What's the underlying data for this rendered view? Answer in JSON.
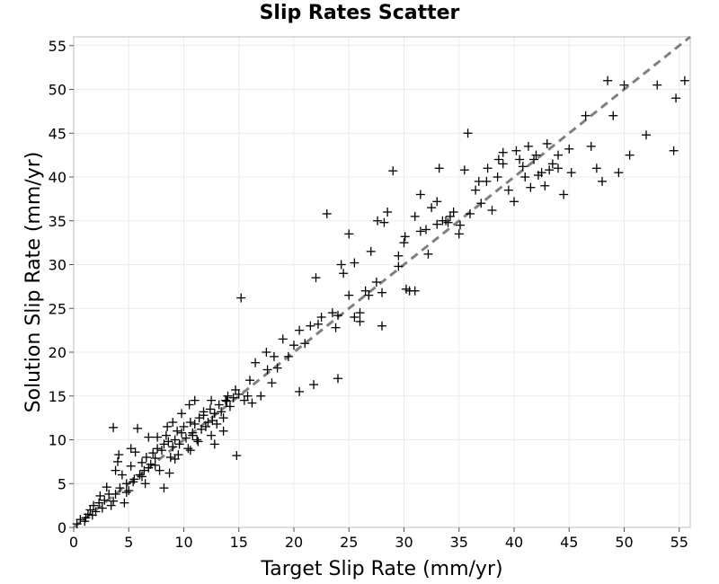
{
  "chart_data": {
    "type": "scatter",
    "title": "Slip Rates Scatter",
    "xlabel": "Target Slip Rate (mm/yr)",
    "ylabel": "Solution Slip Rate (mm/yr)",
    "xlim": [
      0,
      56
    ],
    "ylim": [
      0,
      56
    ],
    "xticks": [
      "0",
      "5",
      "10",
      "15",
      "20",
      "25",
      "30",
      "35",
      "40",
      "45",
      "50",
      "55"
    ],
    "yticks": [
      "0",
      "5",
      "10",
      "15",
      "20",
      "25",
      "30",
      "35",
      "40",
      "45",
      "50",
      "55"
    ],
    "grid": true,
    "marker": "plus",
    "reference_line": {
      "style": "dashed",
      "color": "#808080",
      "from": [
        0,
        0
      ],
      "to": [
        56,
        56
      ]
    },
    "points": [
      [
        0.3,
        0.4
      ],
      [
        0.6,
        0.9
      ],
      [
        1.0,
        0.7
      ],
      [
        1.3,
        1.5
      ],
      [
        1.5,
        2.0
      ],
      [
        1.8,
        2.5
      ],
      [
        2.0,
        1.8
      ],
      [
        2.3,
        2.8
      ],
      [
        2.6,
        2.2
      ],
      [
        2.8,
        3.1
      ],
      [
        3.0,
        4.6
      ],
      [
        3.2,
        3.8
      ],
      [
        3.4,
        2.5
      ],
      [
        3.6,
        3.0
      ],
      [
        3.8,
        6.5
      ],
      [
        4.0,
        7.5
      ],
      [
        4.1,
        8.3
      ],
      [
        4.2,
        4.5
      ],
      [
        4.4,
        6.0
      ],
      [
        4.6,
        2.8
      ],
      [
        4.8,
        5.0
      ],
      [
        5.0,
        4.2
      ],
      [
        5.2,
        7.0
      ],
      [
        5.4,
        5.2
      ],
      [
        5.6,
        8.6
      ],
      [
        5.8,
        11.3
      ],
      [
        6.0,
        6.0
      ],
      [
        6.2,
        7.4
      ],
      [
        6.4,
        6.5
      ],
      [
        6.6,
        8.0
      ],
      [
        6.8,
        6.8
      ],
      [
        7.0,
        7.2
      ],
      [
        7.2,
        8.5
      ],
      [
        7.4,
        7.9
      ],
      [
        7.6,
        9.0
      ],
      [
        7.8,
        6.5
      ],
      [
        8.0,
        8.8
      ],
      [
        8.2,
        9.5
      ],
      [
        8.4,
        10.5
      ],
      [
        8.6,
        9.8
      ],
      [
        8.8,
        8.0
      ],
      [
        9.0,
        9.2
      ],
      [
        9.2,
        10.0
      ],
      [
        9.4,
        11.0
      ],
      [
        9.6,
        9.5
      ],
      [
        9.8,
        10.8
      ],
      [
        10.0,
        11.5
      ],
      [
        10.2,
        10.2
      ],
      [
        10.4,
        9.0
      ],
      [
        10.6,
        12.0
      ],
      [
        10.8,
        10.5
      ],
      [
        11.0,
        11.8
      ],
      [
        11.2,
        10.0
      ],
      [
        11.4,
        12.5
      ],
      [
        11.6,
        11.2
      ],
      [
        11.8,
        12.8
      ],
      [
        12.0,
        11.5
      ],
      [
        12.2,
        12.0
      ],
      [
        12.4,
        13.5
      ],
      [
        12.6,
        12.2
      ],
      [
        12.8,
        13.0
      ],
      [
        13.0,
        11.8
      ],
      [
        13.2,
        14.0
      ],
      [
        13.4,
        13.2
      ],
      [
        13.6,
        12.5
      ],
      [
        13.8,
        14.5
      ],
      [
        14.0,
        15.0
      ],
      [
        14.2,
        13.8
      ],
      [
        14.5,
        14.8
      ],
      [
        14.8,
        8.2
      ],
      [
        15.0,
        15.2
      ],
      [
        15.2,
        26.2
      ],
      [
        15.5,
        14.5
      ],
      [
        16.0,
        16.8
      ],
      [
        16.5,
        18.8
      ],
      [
        17.0,
        15.0
      ],
      [
        17.5,
        20.0
      ],
      [
        18.0,
        16.5
      ],
      [
        18.5,
        18.2
      ],
      [
        19.0,
        21.5
      ],
      [
        19.5,
        19.5
      ],
      [
        20.0,
        20.8
      ],
      [
        20.5,
        22.5
      ],
      [
        21.0,
        21.0
      ],
      [
        21.5,
        23.0
      ],
      [
        21.8,
        16.3
      ],
      [
        22.0,
        28.5
      ],
      [
        22.5,
        24.0
      ],
      [
        23.0,
        35.8
      ],
      [
        23.5,
        24.5
      ],
      [
        24.0,
        17.0
      ],
      [
        24.5,
        29.0
      ],
      [
        25.0,
        26.5
      ],
      [
        25.5,
        30.2
      ],
      [
        26.0,
        24.5
      ],
      [
        26.5,
        27.0
      ],
      [
        27.0,
        31.5
      ],
      [
        27.5,
        28.0
      ],
      [
        28.0,
        23.0
      ],
      [
        28.5,
        36.0
      ],
      [
        29.0,
        40.7
      ],
      [
        29.5,
        29.8
      ],
      [
        30.0,
        32.5
      ],
      [
        30.5,
        27.0
      ],
      [
        31.0,
        35.5
      ],
      [
        31.5,
        38.0
      ],
      [
        32.0,
        34.0
      ],
      [
        32.5,
        36.5
      ],
      [
        33.0,
        37.2
      ],
      [
        33.5,
        35.0
      ],
      [
        34.0,
        34.8
      ],
      [
        34.5,
        36.0
      ],
      [
        35.0,
        33.5
      ],
      [
        35.5,
        40.8
      ],
      [
        36.0,
        35.8
      ],
      [
        36.5,
        38.5
      ],
      [
        37.0,
        37.0
      ],
      [
        37.5,
        39.5
      ],
      [
        38.0,
        36.2
      ],
      [
        38.5,
        40.0
      ],
      [
        39.0,
        41.5
      ],
      [
        39.5,
        38.5
      ],
      [
        40.0,
        37.2
      ],
      [
        40.5,
        42.0
      ],
      [
        41.0,
        40.0
      ],
      [
        41.5,
        38.8
      ],
      [
        42.0,
        42.5
      ],
      [
        42.5,
        40.5
      ],
      [
        43.0,
        43.8
      ],
      [
        43.5,
        41.5
      ],
      [
        44.0,
        42.5
      ],
      [
        44.5,
        38.0
      ],
      [
        45.0,
        43.2
      ],
      [
        46.5,
        47.0
      ],
      [
        47.0,
        43.5
      ],
      [
        47.5,
        41.0
      ],
      [
        48.0,
        39.5
      ],
      [
        48.5,
        51.0
      ],
      [
        49.0,
        47.0
      ],
      [
        49.5,
        40.5
      ],
      [
        50.0,
        50.5
      ],
      [
        50.5,
        42.5
      ],
      [
        52.0,
        44.8
      ],
      [
        53.0,
        50.5
      ],
      [
        54.5,
        43.0
      ],
      [
        54.7,
        49.0
      ],
      [
        55.5,
        51.0
      ],
      [
        30.2,
        27.2
      ],
      [
        31.0,
        27.0
      ],
      [
        33.2,
        41.0
      ],
      [
        35.8,
        45.0
      ],
      [
        26.8,
        26.5
      ],
      [
        28.0,
        26.8
      ],
      [
        24.3,
        30.0
      ],
      [
        25.0,
        33.5
      ],
      [
        20.5,
        15.5
      ],
      [
        18.2,
        19.5
      ],
      [
        16.2,
        14.2
      ],
      [
        6.5,
        5.0
      ],
      [
        7.6,
        10.3
      ],
      [
        9.2,
        7.8
      ],
      [
        10.6,
        8.8
      ],
      [
        11.8,
        13.2
      ],
      [
        12.5,
        10.5
      ],
      [
        13.6,
        11.0
      ],
      [
        8.5,
        11.5
      ],
      [
        9.0,
        12.0
      ],
      [
        5.2,
        9.0
      ],
      [
        6.8,
        10.3
      ],
      [
        3.6,
        11.4
      ],
      [
        9.8,
        13.0
      ],
      [
        10.5,
        14.0
      ],
      [
        11.0,
        14.5
      ],
      [
        12.5,
        14.5
      ],
      [
        8.2,
        4.5
      ],
      [
        12.8,
        9.5
      ],
      [
        10.8,
        10.8
      ],
      [
        11.3,
        9.8
      ],
      [
        9.5,
        8.3
      ],
      [
        8.7,
        6.2
      ],
      [
        7.4,
        7.1
      ],
      [
        6.2,
        5.8
      ],
      [
        5.5,
        5.5
      ],
      [
        4.8,
        4.0
      ],
      [
        2.4,
        3.6
      ],
      [
        1.7,
        1.4
      ],
      [
        1.1,
        1.1
      ],
      [
        3.8,
        3.8
      ],
      [
        14.7,
        15.7
      ],
      [
        15.8,
        15.0
      ],
      [
        13.9,
        14.4
      ],
      [
        17.6,
        18.0
      ],
      [
        22.2,
        23.2
      ],
      [
        23.8,
        22.8
      ],
      [
        24.0,
        24.2
      ],
      [
        25.5,
        24.0
      ],
      [
        26.0,
        23.5
      ],
      [
        27.6,
        35.0
      ],
      [
        28.2,
        34.8
      ],
      [
        29.5,
        31.0
      ],
      [
        30.1,
        33.2
      ],
      [
        31.5,
        33.8
      ],
      [
        32.2,
        31.2
      ],
      [
        33.0,
        34.6
      ],
      [
        33.8,
        35.0
      ],
      [
        34.2,
        35.5
      ],
      [
        35.1,
        34.5
      ],
      [
        36.8,
        39.5
      ],
      [
        37.6,
        41.0
      ],
      [
        38.6,
        42.0
      ],
      [
        39.0,
        42.8
      ],
      [
        40.2,
        43.0
      ],
      [
        40.8,
        41.2
      ],
      [
        41.3,
        43.5
      ],
      [
        41.8,
        42.0
      ],
      [
        42.2,
        40.2
      ],
      [
        42.8,
        39.0
      ],
      [
        43.2,
        40.8
      ],
      [
        44.0,
        41.0
      ],
      [
        45.2,
        40.5
      ]
    ]
  }
}
